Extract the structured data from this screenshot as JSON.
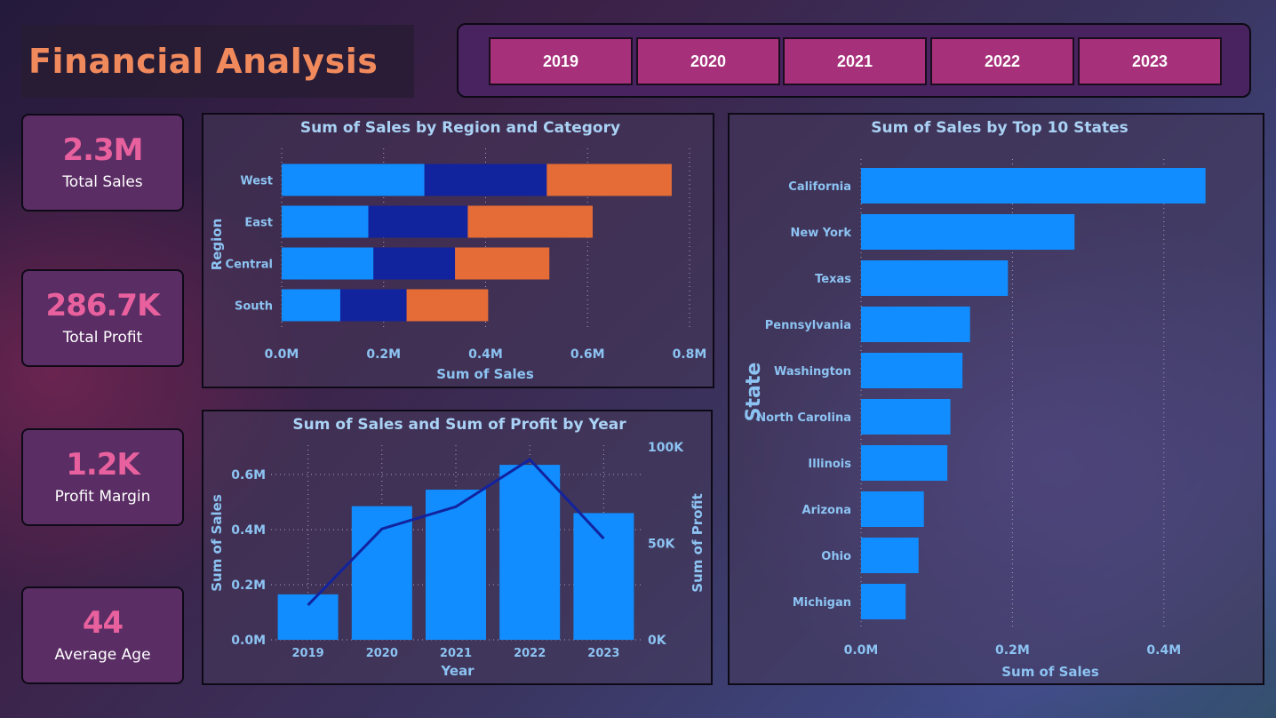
{
  "header": {
    "title": "Financial Analysis"
  },
  "year_filter": {
    "years": [
      "2019",
      "2020",
      "2021",
      "2022",
      "2023"
    ]
  },
  "kpis": [
    {
      "value": "2.3M",
      "label": "Total Sales"
    },
    {
      "value": "286.7K",
      "label": "Total Profit"
    },
    {
      "value": "1.2K",
      "label": "Profit Margin"
    },
    {
      "value": "44",
      "label": "Average Age"
    }
  ],
  "colors": {
    "accent_blue": "#118dff",
    "dark_blue": "#12239e",
    "orange": "#e66c37",
    "kpi_value": "#e8619e",
    "title": "#f08a5d"
  },
  "chart_data": [
    {
      "id": "region_category",
      "type": "bar",
      "orientation": "horizontal",
      "stacked": true,
      "title": "Sum of Sales by Region and Category",
      "xlabel": "Sum of Sales",
      "ylabel": "Region",
      "categories": [
        "West",
        "East",
        "Central",
        "South"
      ],
      "series": [
        {
          "values": [
            0.28,
            0.17,
            0.18,
            0.115
          ],
          "color": "#118dff"
        },
        {
          "values": [
            0.24,
            0.195,
            0.16,
            0.13
          ],
          "color": "#12239e"
        },
        {
          "values": [
            0.245,
            0.245,
            0.185,
            0.16
          ],
          "color": "#e66c37"
        }
      ],
      "xlim": [
        0,
        0.8
      ],
      "xticks": [
        "0.0M",
        "0.2M",
        "0.4M",
        "0.6M",
        "0.8M"
      ],
      "grid": true
    },
    {
      "id": "sales_profit_year",
      "type": "bar",
      "combo_line": true,
      "title": "Sum of Sales and Sum of Profit by Year",
      "xlabel": "Year",
      "ylabel": "Sum of Sales",
      "y2label": "Sum of Profit",
      "categories": [
        "2019",
        "2020",
        "2021",
        "2022",
        "2023"
      ],
      "series": [
        {
          "name": "Sum of Sales",
          "values": [
            0.165,
            0.485,
            0.545,
            0.635,
            0.46
          ],
          "color": "#118dff",
          "axis": "left"
        },
        {
          "name": "Sum of Profit",
          "values": [
            18000,
            57500,
            69000,
            93500,
            52500
          ],
          "color": "#12239e",
          "axis": "right",
          "type": "line"
        }
      ],
      "ylim": [
        0,
        0.7
      ],
      "yticks": [
        "0.0M",
        "0.2M",
        "0.4M",
        "0.6M"
      ],
      "y2lim": [
        0,
        100000
      ],
      "y2ticks": [
        "0K",
        "50K",
        "100K"
      ],
      "grid": true
    },
    {
      "id": "top_states",
      "type": "bar",
      "orientation": "horizontal",
      "title": "Sum of Sales by Top 10 States",
      "xlabel": "Sum of Sales",
      "ylabel": "State",
      "categories": [
        "California",
        "New York",
        "Texas",
        "Pennsylvania",
        "Washington",
        "North Carolina",
        "Illinois",
        "Arizona",
        "Ohio",
        "Michigan"
      ],
      "values": [
        0.455,
        0.282,
        0.194,
        0.144,
        0.134,
        0.118,
        0.114,
        0.083,
        0.076,
        0.059
      ],
      "color": "#118dff",
      "xlim": [
        0,
        0.5
      ],
      "xticks": [
        "0.0M",
        "0.2M",
        "0.4M"
      ],
      "grid": true
    }
  ]
}
